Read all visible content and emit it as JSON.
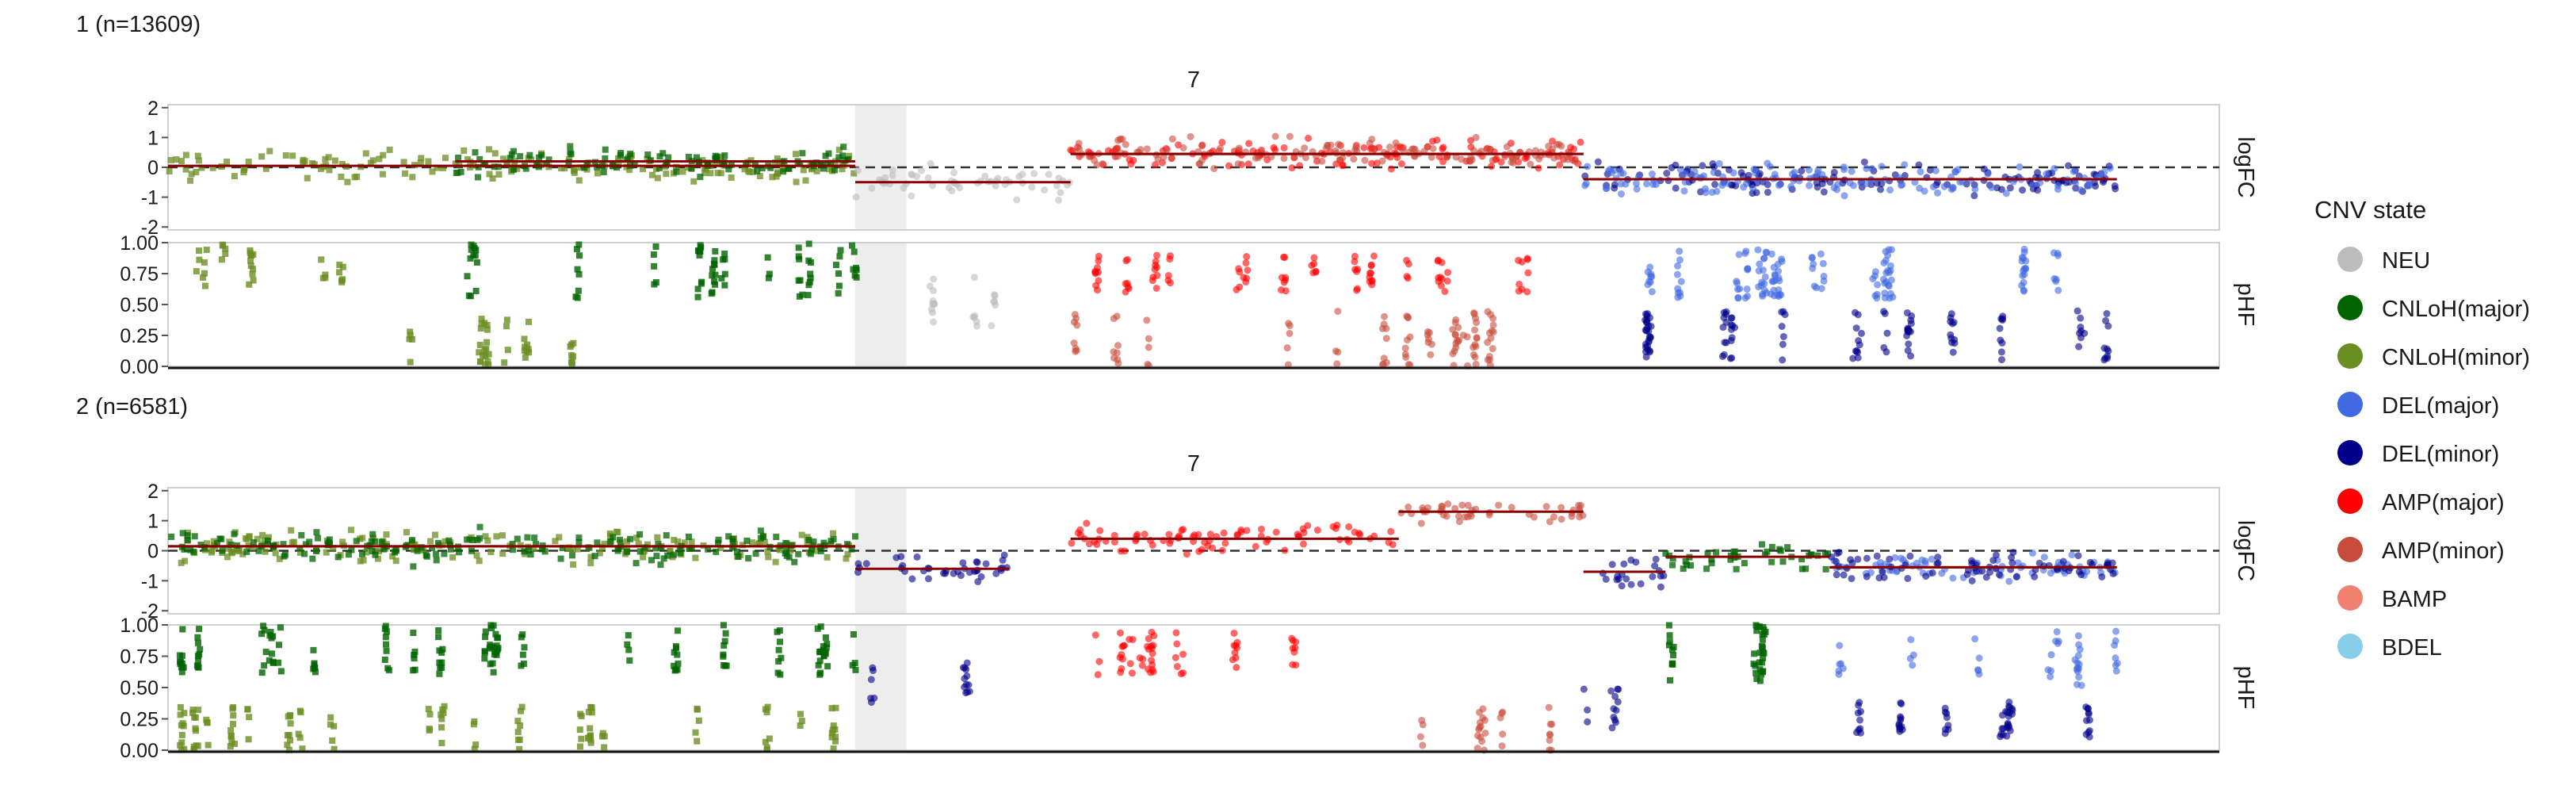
{
  "chart_data": {
    "type": "scatter",
    "chromosome_label": "7",
    "legend": {
      "title": "CNV state",
      "placement": "right",
      "entries": [
        {
          "label": "NEU",
          "color": "#bdbdbd"
        },
        {
          "label": "CNLoH(major)",
          "color": "#006400"
        },
        {
          "label": "CNLoH(minor)",
          "color": "#6b8e23"
        },
        {
          "label": "DEL(major)",
          "color": "#4169e1"
        },
        {
          "label": "DEL(minor)",
          "color": "#00008b"
        },
        {
          "label": "AMP(major)",
          "color": "#ff0000"
        },
        {
          "label": "AMP(minor)",
          "color": "#c84c3c"
        },
        {
          "label": "BAMP",
          "color": "#f08070"
        },
        {
          "label": "BDEL",
          "color": "#87ceeb"
        }
      ]
    },
    "row_labels": [
      "logFC",
      "pHF"
    ],
    "logfc_axis": {
      "ticks": [
        "2",
        "1",
        "0",
        "-1",
        "-2"
      ],
      "ylim": [
        -2.1,
        2.1
      ]
    },
    "phf_axis": {
      "ticks": [
        "1.00",
        "0.75",
        "0.50",
        "0.25",
        "0.00"
      ],
      "ylim": [
        0,
        1
      ]
    },
    "grey_band": [
      0.335,
      0.36
    ],
    "panels": [
      {
        "title": "1 (n=13609)",
        "segments": [
          {
            "state": "CNLoH(minor)",
            "x": [
              0.0,
              0.335
            ],
            "logfc": 0.05,
            "phf": [
              [
                0.0,
                0.1,
                0.65,
                1.0
              ],
              [
                0.1,
                0.2,
                0.0,
                0.4
              ]
            ]
          },
          {
            "state": "CNLoH(major)",
            "x": [
              0.14,
              0.335
            ],
            "logfc": 0.2,
            "phf": [
              [
                0.14,
                0.335,
                0.55,
                1.0
              ]
            ]
          },
          {
            "state": "NEU",
            "x": [
              0.335,
              0.44
            ],
            "logfc": -0.5,
            "phf": [
              [
                0.37,
                0.42,
                0.3,
                0.75
              ]
            ]
          },
          {
            "state": "AMP(major)",
            "x": [
              0.44,
              0.69
            ],
            "logfc": 0.45,
            "phf": [
              [
                0.44,
                0.69,
                0.6,
                0.9
              ]
            ]
          },
          {
            "state": "AMP(minor)",
            "x": [
              0.44,
              0.69
            ],
            "logfc": 0.45,
            "phf": [
              [
                0.44,
                0.69,
                0.0,
                0.45
              ]
            ]
          },
          {
            "state": "DEL(minor)",
            "x": [
              0.69,
              0.95
            ],
            "logfc": -0.4,
            "phf": [
              [
                0.69,
                0.95,
                0.05,
                0.45
              ]
            ]
          },
          {
            "state": "DEL(major)",
            "x": [
              0.69,
              0.95
            ],
            "logfc": -0.4,
            "phf": [
              [
                0.69,
                0.95,
                0.55,
                0.95
              ]
            ]
          }
        ]
      },
      {
        "title": "2 (n=6581)",
        "segments": [
          {
            "state": "CNLoH(minor)",
            "x": [
              0.0,
              0.335
            ],
            "logfc": 0.15,
            "phf": [
              [
                0.0,
                0.335,
                0.0,
                0.35
              ]
            ]
          },
          {
            "state": "CNLoH(major)",
            "x": [
              0.0,
              0.335
            ],
            "logfc": 0.15,
            "phf": [
              [
                0.0,
                0.335,
                0.6,
                1.0
              ]
            ]
          },
          {
            "state": "DEL(minor)",
            "x": [
              0.335,
              0.41
            ],
            "logfc": -0.6,
            "phf": [
              [
                0.335,
                0.41,
                0.3,
                0.7
              ]
            ]
          },
          {
            "state": "AMP(major)",
            "x": [
              0.44,
              0.6
            ],
            "logfc": 0.4,
            "phf": [
              [
                0.44,
                0.6,
                0.6,
                0.95
              ]
            ]
          },
          {
            "state": "AMP(minor)",
            "x": [
              0.6,
              0.69
            ],
            "logfc": 1.3,
            "phf": [
              [
                0.6,
                0.69,
                0.0,
                0.35
              ]
            ]
          },
          {
            "state": "DEL(minor)",
            "x": [
              0.69,
              0.73
            ],
            "logfc": -0.7,
            "phf": [
              [
                0.69,
                0.73,
                0.1,
                0.5
              ]
            ]
          },
          {
            "state": "CNLoH(major)",
            "x": [
              0.73,
              0.81
            ],
            "logfc": -0.2,
            "phf": [
              [
                0.73,
                0.81,
                0.55,
                1.0
              ]
            ]
          },
          {
            "state": "DEL(major)",
            "x": [
              0.81,
              0.95
            ],
            "logfc": -0.55,
            "phf": [
              [
                0.81,
                0.95,
                0.5,
                0.95
              ]
            ]
          },
          {
            "state": "DEL(minor)",
            "x": [
              0.81,
              0.95
            ],
            "logfc": -0.55,
            "phf": [
              [
                0.81,
                0.95,
                0.1,
                0.4
              ]
            ]
          }
        ]
      }
    ]
  }
}
